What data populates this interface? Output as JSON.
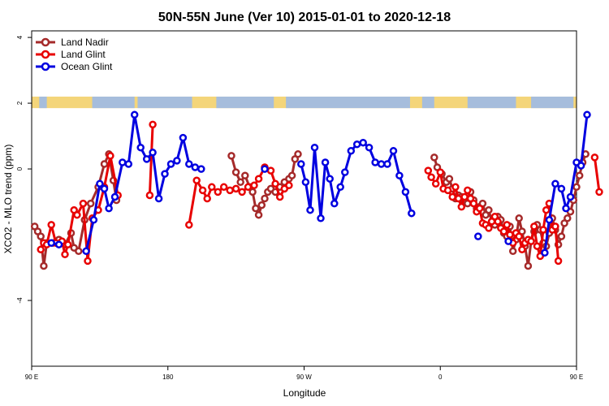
{
  "chart_data": {
    "type": "line",
    "title": "50N-55N June (Ver 10)   2015-01-01 to 2020-12-18",
    "xlabel": "Longitude",
    "ylabel": "XCO2 - MLO trend (ppm)",
    "xlim": [
      90,
      450
    ],
    "ylim": [
      -6,
      4.2
    ],
    "x_ticks": [
      {
        "value": 90,
        "label": "90 E"
      },
      {
        "value": 180,
        "label": "180"
      },
      {
        "value": 270,
        "label": "90 W"
      },
      {
        "value": 360,
        "label": "0"
      },
      {
        "value": 450,
        "label": "90 E"
      },
      {
        "value": 540,
        "label": "180"
      }
    ],
    "y_ticks": [
      {
        "value": 4,
        "label": "4"
      },
      {
        "value": 2,
        "label": "2"
      },
      {
        "value": 0,
        "label": "0"
      },
      {
        "value": -4,
        "label": "-4"
      }
    ],
    "legend_position": "top-left",
    "land_mask_band": {
      "y_range": [
        1.85,
        2.2
      ],
      "land_color": "#f4d57a",
      "ocean_color": "#a6bddc"
    },
    "series": [
      {
        "name": "Land Nadir",
        "color": "#a52a2a",
        "segments": [
          [
            [
              92,
              -1.75
            ],
            [
              94,
              -1.9
            ],
            [
              96,
              -2.05
            ],
            [
              98,
              -2.95
            ],
            [
              100,
              -2.25
            ],
            [
              104,
              -2.25
            ],
            [
              108,
              -2.15
            ],
            [
              112,
              -2.3
            ],
            [
              116,
              -1.95
            ],
            [
              118,
              -2.4
            ],
            [
              121,
              -2.5
            ],
            [
              125,
              -1.55
            ],
            [
              129,
              -1.05
            ],
            [
              134,
              -0.55
            ],
            [
              138,
              0.15
            ],
            [
              141,
              0.45
            ],
            [
              144,
              -0.35
            ],
            [
              146,
              -0.95
            ]
          ],
          [
            [
              222,
              0.4
            ],
            [
              225,
              -0.1
            ],
            [
              228,
              -0.4
            ],
            [
              231,
              -0.2
            ],
            [
              234,
              -0.55
            ],
            [
              236,
              -0.7
            ],
            [
              238,
              -1.2
            ],
            [
              240,
              -1.4
            ],
            [
              242,
              -1.1
            ],
            [
              244,
              -0.9
            ],
            [
              246,
              -0.7
            ],
            [
              248,
              -0.6
            ],
            [
              251,
              -0.7
            ],
            [
              254,
              -0.55
            ],
            [
              257,
              -0.4
            ],
            [
              260,
              -0.3
            ],
            [
              262,
              -0.2
            ],
            [
              264,
              0.3
            ],
            [
              266,
              0.45
            ]
          ],
          [
            [
              356,
              0.35
            ],
            [
              358,
              0.05
            ],
            [
              361,
              -0.15
            ],
            [
              364,
              -0.4
            ],
            [
              366,
              -0.3
            ],
            [
              368,
              -0.6
            ],
            [
              370,
              -0.9
            ],
            [
              372,
              -0.8
            ],
            [
              374,
              -0.85
            ],
            [
              376,
              -1.0
            ],
            [
              378,
              -1.05
            ],
            [
              380,
              -0.7
            ],
            [
              382,
              -0.95
            ],
            [
              384,
              -1.2
            ],
            [
              386,
              -1.15
            ],
            [
              388,
              -1.05
            ],
            [
              390,
              -1.4
            ],
            [
              392,
              -1.25
            ],
            [
              394,
              -1.6
            ],
            [
              396,
              -1.7
            ],
            [
              398,
              -1.45
            ],
            [
              400,
              -1.55
            ],
            [
              402,
              -1.95
            ],
            [
              404,
              -2.05
            ],
            [
              406,
              -1.75
            ],
            [
              408,
              -2.5
            ],
            [
              410,
              -2.15
            ],
            [
              412,
              -1.5
            ],
            [
              414,
              -1.9
            ],
            [
              416,
              -2.35
            ],
            [
              418,
              -2.95
            ],
            [
              420,
              -2.2
            ],
            [
              422,
              -1.9
            ],
            [
              424,
              -1.7
            ],
            [
              426,
              -1.85
            ],
            [
              428,
              -2.25
            ],
            [
              430,
              -2.35
            ],
            [
              432,
              -1.95
            ],
            [
              434,
              -1.5
            ],
            [
              436,
              -1.85
            ],
            [
              438,
              -2.3
            ],
            [
              440,
              -2.05
            ],
            [
              442,
              -1.65
            ],
            [
              444,
              -1.5
            ],
            [
              446,
              -1.3
            ],
            [
              448,
              -0.95
            ],
            [
              450,
              -0.55
            ],
            [
              452,
              -0.2
            ],
            [
              454,
              0.2
            ],
            [
              456,
              0.45
            ]
          ]
        ]
      },
      {
        "name": "Land Glint",
        "color": "#e80000",
        "segments": [
          [
            [
              96,
              -2.45
            ],
            [
              98,
              -2.25
            ],
            [
              100,
              -2.3
            ],
            [
              103,
              -1.7
            ],
            [
              106,
              -2.25
            ],
            [
              110,
              -2.2
            ],
            [
              112,
              -2.6
            ],
            [
              114,
              -2.3
            ],
            [
              118,
              -1.25
            ],
            [
              120,
              -1.4
            ],
            [
              124,
              -1.05
            ],
            [
              127,
              -2.8
            ],
            [
              130,
              -1.5
            ],
            [
              134,
              -1.25
            ],
            [
              138,
              -0.55
            ],
            [
              142,
              0.4
            ],
            [
              147,
              -0.8
            ]
          ],
          [
            [
              168,
              -0.8
            ],
            [
              170,
              1.35
            ]
          ],
          [
            [
              194,
              -1.7
            ],
            [
              199,
              -0.35
            ],
            [
              203,
              -0.65
            ],
            [
              206,
              -0.9
            ],
            [
              209,
              -0.55
            ],
            [
              213,
              -0.7
            ],
            [
              217,
              -0.55
            ],
            [
              221,
              -0.65
            ],
            [
              225,
              -0.6
            ],
            [
              229,
              -0.7
            ],
            [
              233,
              -0.55
            ],
            [
              237,
              -0.5
            ],
            [
              240,
              -0.3
            ],
            [
              244,
              0.05
            ],
            [
              248,
              -0.05
            ],
            [
              251,
              -0.45
            ],
            [
              254,
              -0.85
            ],
            [
              257,
              -0.6
            ],
            [
              260,
              -0.5
            ]
          ],
          [
            [
              352,
              -0.05
            ],
            [
              354,
              -0.25
            ],
            [
              357,
              -0.45
            ],
            [
              360,
              -0.1
            ],
            [
              362,
              -0.6
            ],
            [
              365,
              -0.65
            ],
            [
              368,
              -0.85
            ],
            [
              370,
              -0.55
            ],
            [
              372,
              -0.9
            ],
            [
              374,
              -1.15
            ],
            [
              376,
              -0.85
            ],
            [
              378,
              -0.65
            ],
            [
              380,
              -0.9
            ],
            [
              382,
              -1.05
            ],
            [
              384,
              -1.3
            ],
            [
              386,
              -1.2
            ],
            [
              388,
              -1.65
            ],
            [
              390,
              -1.7
            ],
            [
              392,
              -1.8
            ],
            [
              394,
              -1.6
            ],
            [
              396,
              -1.45
            ],
            [
              398,
              -1.6
            ],
            [
              400,
              -1.8
            ],
            [
              402,
              -1.9
            ],
            [
              404,
              -1.7
            ],
            [
              406,
              -2.0
            ],
            [
              408,
              -2.25
            ],
            [
              410,
              -1.95
            ],
            [
              412,
              -2.05
            ],
            [
              414,
              -2.45
            ],
            [
              416,
              -2.25
            ],
            [
              418,
              -2.15
            ],
            [
              420,
              -2.2
            ],
            [
              422,
              -1.75
            ],
            [
              424,
              -2.35
            ],
            [
              426,
              -2.65
            ],
            [
              428,
              -1.85
            ],
            [
              430,
              -1.25
            ],
            [
              432,
              -1.05
            ],
            [
              434,
              -1.85
            ],
            [
              436,
              -1.75
            ],
            [
              438,
              -2.8
            ]
          ],
          [
            [
              462,
              0.35
            ],
            [
              465,
              -0.7
            ]
          ]
        ]
      },
      {
        "name": "Ocean Glint",
        "color": "#0000e0",
        "segments": [
          [
            [
              103,
              -2.25
            ],
            [
              108,
              -2.3
            ]
          ],
          [
            [
              126,
              -2.5
            ],
            [
              131,
              -1.55
            ],
            [
              135,
              -0.45
            ],
            [
              138,
              -0.6
            ],
            [
              141,
              -1.2
            ],
            [
              145,
              -0.85
            ],
            [
              150,
              0.2
            ],
            [
              154,
              0.15
            ],
            [
              158,
              1.65
            ],
            [
              162,
              0.65
            ],
            [
              166,
              0.3
            ],
            [
              170,
              0.5
            ],
            [
              174,
              -0.9
            ],
            [
              178,
              -0.15
            ],
            [
              182,
              0.15
            ],
            [
              186,
              0.25
            ],
            [
              190,
              0.95
            ],
            [
              194,
              0.15
            ],
            [
              198,
              0.05
            ],
            [
              202,
              0
            ]
          ],
          [
            [
              244,
              0
            ]
          ],
          [
            [
              268,
              0.15
            ],
            [
              271,
              -0.4
            ],
            [
              274,
              -1.25
            ],
            [
              277,
              0.65
            ],
            [
              281,
              -1.5
            ],
            [
              284,
              0.2
            ],
            [
              287,
              -0.3
            ],
            [
              290,
              -1.05
            ],
            [
              294,
              -0.55
            ],
            [
              297,
              -0.1
            ],
            [
              301,
              0.55
            ],
            [
              305,
              0.75
            ],
            [
              309,
              0.8
            ],
            [
              313,
              0.65
            ],
            [
              317,
              0.2
            ],
            [
              321,
              0.15
            ],
            [
              325,
              0.15
            ],
            [
              329,
              0.55
            ],
            [
              333,
              -0.2
            ],
            [
              337,
              -0.7
            ],
            [
              341,
              -1.35
            ]
          ],
          [
            [
              385,
              -2.05
            ]
          ],
          [
            [
              405,
              -2.2
            ]
          ],
          [
            [
              429,
              -2.55
            ],
            [
              432,
              -1.55
            ],
            [
              436,
              -0.45
            ],
            [
              440,
              -0.6
            ],
            [
              443,
              -1.2
            ],
            [
              446,
              -0.85
            ],
            [
              450,
              0.2
            ],
            [
              453,
              0.1
            ],
            [
              457,
              1.65
            ]
          ]
        ]
      }
    ]
  }
}
